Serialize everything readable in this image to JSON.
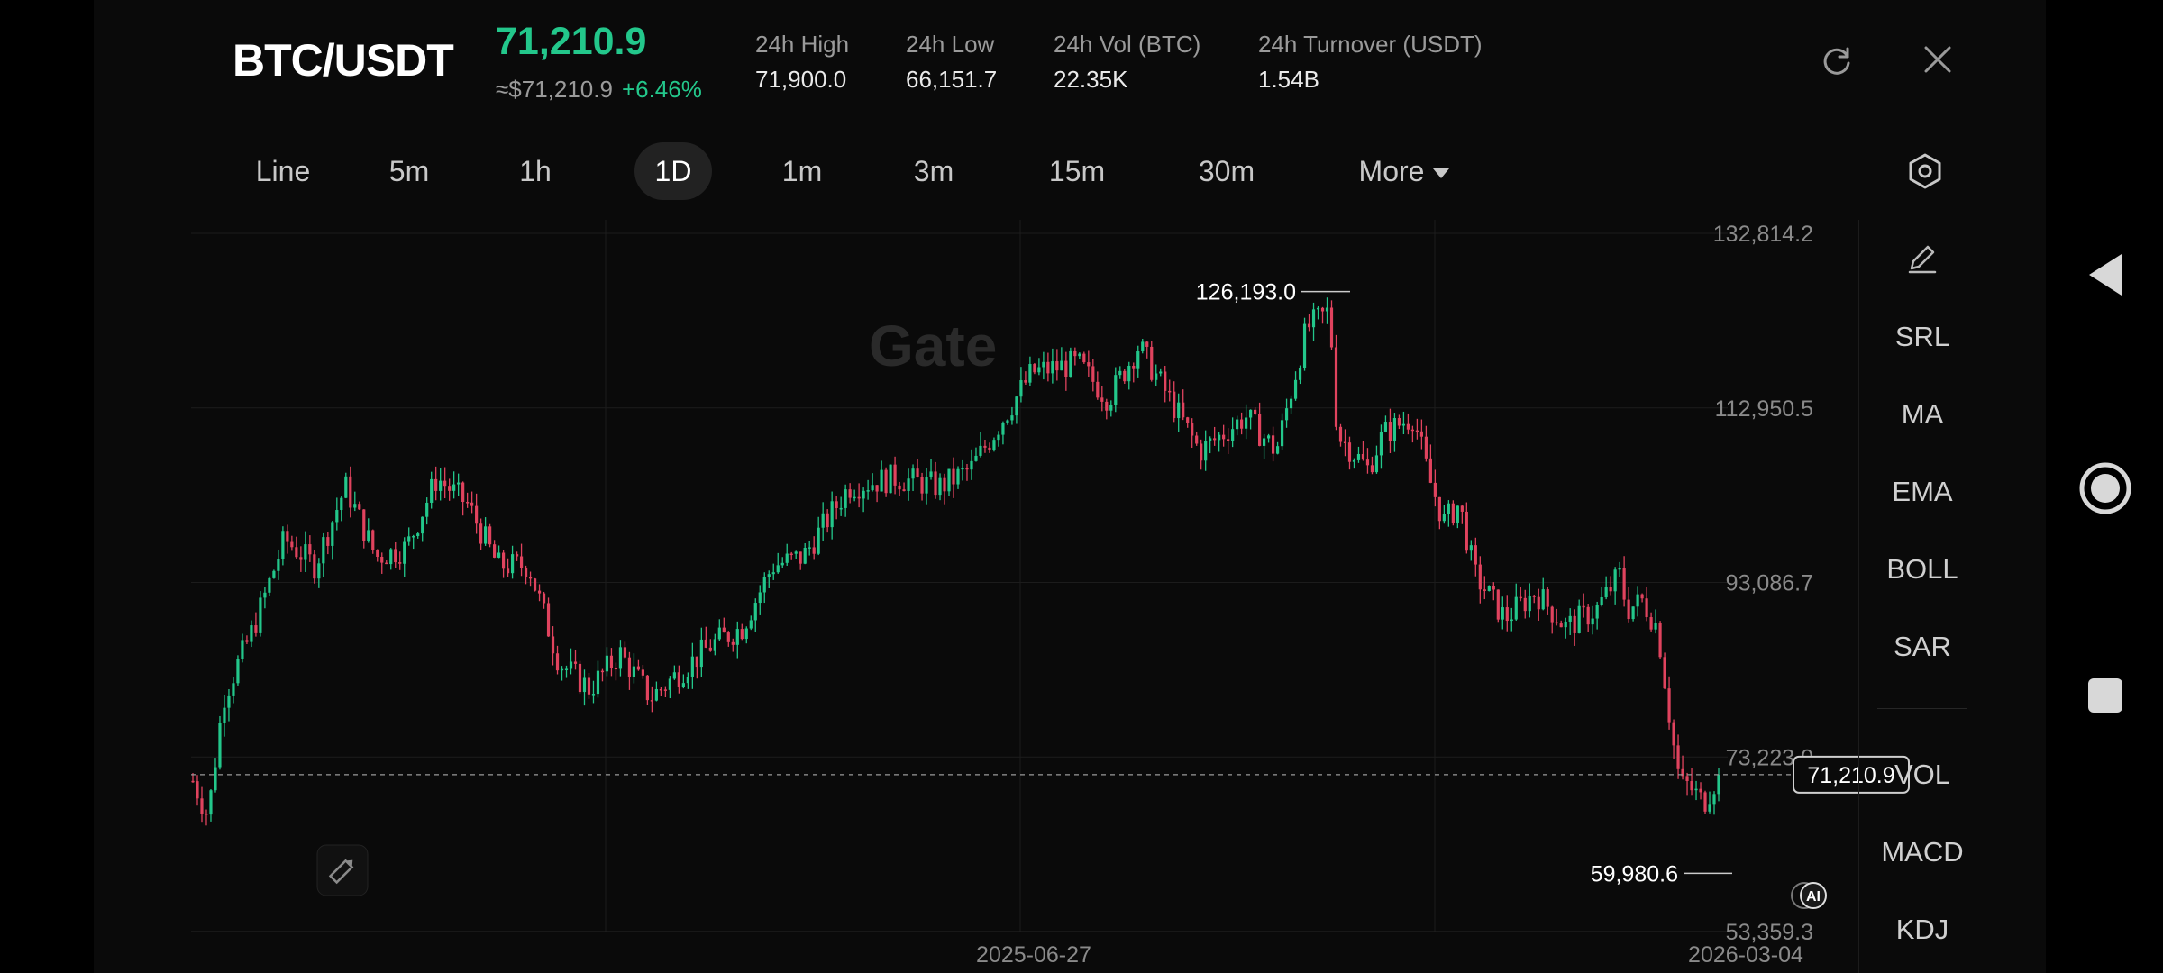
{
  "header": {
    "pair": "BTC/USDT",
    "last_price": "71,210.9",
    "usd_price": "≈$71,210.9",
    "change": "+6.46%",
    "stats": [
      {
        "label": "24h  High",
        "value": "71,900.0"
      },
      {
        "label": "24h  Low",
        "value": "66,151.7"
      },
      {
        "label": "24h  Vol (BTC)",
        "value": "22.35K"
      },
      {
        "label": "24h  Turnover (USDT)",
        "value": "1.54B"
      }
    ],
    "icons": [
      "refresh-icon",
      "close-icon"
    ]
  },
  "intervals": {
    "items": [
      "Line",
      "5m",
      "1h",
      "1D",
      "1m",
      "3m",
      "15m",
      "30m"
    ],
    "more": "More",
    "selected": "1D"
  },
  "indicators": [
    "SRL",
    "MA",
    "EMA",
    "BOLL",
    "SAR",
    "VOL",
    "MACD",
    "KDJ"
  ],
  "chart": {
    "watermark": "Gate",
    "ai_badge": "AI",
    "high_marker": "126,193.0",
    "low_marker": "59,980.6",
    "current_price_tag": "71,210.9",
    "colors": {
      "up": "#23c78b",
      "down": "#e0435e"
    }
  },
  "chart_data": {
    "type": "candlestick",
    "symbol": "BTC/USDT",
    "interval": "1D",
    "y_tick_labels": [
      "132,814.2",
      "112,950.5",
      "93,086.7",
      "73,223.0",
      "53,359.3"
    ],
    "x_tick_labels": [
      "2025-06-27",
      "2026-03-04"
    ],
    "ylim": [
      53359.3,
      132814.2
    ],
    "current_price": 71210.9,
    "period_high": 126193.0,
    "period_low": 59980.6,
    "close_path": [
      {
        "t": 0,
        "close": 70500
      },
      {
        "t": 0.01,
        "close": 66500
      },
      {
        "t": 0.02,
        "close": 80000
      },
      {
        "t": 0.04,
        "close": 88000
      },
      {
        "t": 0.06,
        "close": 98000
      },
      {
        "t": 0.08,
        "close": 95000
      },
      {
        "t": 0.1,
        "close": 104000
      },
      {
        "t": 0.12,
        "close": 96000
      },
      {
        "t": 0.14,
        "close": 97000
      },
      {
        "t": 0.16,
        "close": 105000
      },
      {
        "t": 0.18,
        "close": 102000
      },
      {
        "t": 0.2,
        "close": 95000
      },
      {
        "t": 0.22,
        "close": 95000
      },
      {
        "t": 0.24,
        "close": 84000
      },
      {
        "t": 0.26,
        "close": 81000
      },
      {
        "t": 0.28,
        "close": 85000
      },
      {
        "t": 0.3,
        "close": 80000
      },
      {
        "t": 0.32,
        "close": 83000
      },
      {
        "t": 0.34,
        "close": 86000
      },
      {
        "t": 0.36,
        "close": 88000
      },
      {
        "t": 0.38,
        "close": 95000
      },
      {
        "t": 0.4,
        "close": 96000
      },
      {
        "t": 0.43,
        "close": 104000
      },
      {
        "t": 0.46,
        "close": 105000
      },
      {
        "t": 0.49,
        "close": 104000
      },
      {
        "t": 0.51,
        "close": 106000
      },
      {
        "t": 0.55,
        "close": 117000
      },
      {
        "t": 0.58,
        "close": 118000
      },
      {
        "t": 0.6,
        "close": 114000
      },
      {
        "t": 0.62,
        "close": 120000
      },
      {
        "t": 0.66,
        "close": 108000
      },
      {
        "t": 0.69,
        "close": 112000
      },
      {
        "t": 0.71,
        "close": 108000
      },
      {
        "t": 0.73,
        "close": 122000
      },
      {
        "t": 0.745,
        "close": 124000
      },
      {
        "t": 0.75,
        "close": 110000
      },
      {
        "t": 0.77,
        "close": 106000
      },
      {
        "t": 0.78,
        "close": 110000
      },
      {
        "t": 0.8,
        "close": 112000
      },
      {
        "t": 0.81,
        "close": 105000
      },
      {
        "t": 0.82,
        "close": 100000
      },
      {
        "t": 0.83,
        "close": 102000
      },
      {
        "t": 0.84,
        "close": 94000
      },
      {
        "t": 0.86,
        "close": 89000
      },
      {
        "t": 0.88,
        "close": 92000
      },
      {
        "t": 0.9,
        "close": 88000
      },
      {
        "t": 0.92,
        "close": 90000
      },
      {
        "t": 0.935,
        "close": 94000
      },
      {
        "t": 0.94,
        "close": 90000
      },
      {
        "t": 0.95,
        "close": 91000
      },
      {
        "t": 0.96,
        "close": 88000
      },
      {
        "t": 0.97,
        "close": 75000
      },
      {
        "t": 0.975,
        "close": 70000
      },
      {
        "t": 0.98,
        "close": 70000
      },
      {
        "t": 0.99,
        "close": 68000
      },
      {
        "t": 1.0,
        "close": 71210.9
      }
    ]
  }
}
